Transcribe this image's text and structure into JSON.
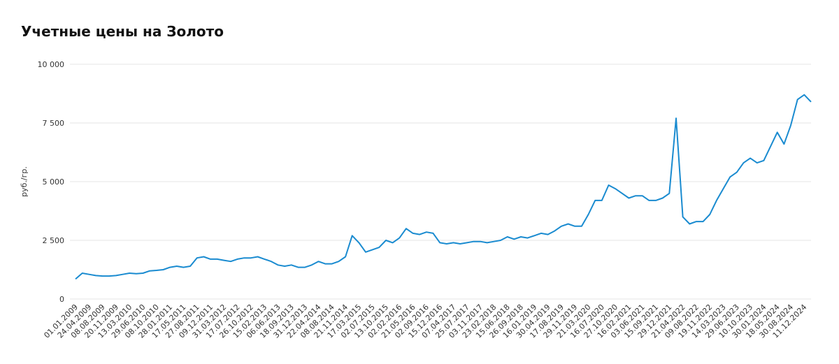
{
  "chart_data": {
    "type": "line",
    "title": "Учетные цены на Золото",
    "y_label": "руб./гр.",
    "categories": [
      "01.01.2009",
      null,
      "24.04.2009",
      null,
      "08.08.2009",
      null,
      "20.11.2009",
      null,
      "13.03.2010",
      null,
      "29.06.2010",
      null,
      "08.10.2010",
      null,
      "28.01.2011",
      null,
      "17.05.2011",
      null,
      "27.08.2011",
      null,
      "09.12.2011",
      null,
      "31.03.2012",
      null,
      "17.07.2012",
      null,
      "26.10.2012",
      null,
      "15.02.2013",
      null,
      "06.06.2013",
      null,
      "18.09.2013",
      null,
      "31.12.2013",
      null,
      "22.04.2014",
      null,
      "08.08.2014",
      null,
      "21.11.2014",
      null,
      "17.03.2015",
      null,
      "02.07.2015",
      null,
      "13.10.2015",
      null,
      "02.02.2016",
      null,
      "21.05.2016",
      null,
      "02.09.2016",
      null,
      "15.12.2016",
      null,
      "07.04.2017",
      null,
      "25.07.2017",
      null,
      "03.11.2017",
      null,
      "23.02.2018",
      null,
      "15.06.2018",
      null,
      "26.09.2018",
      null,
      "16.01.2019",
      null,
      "30.04.2019",
      null,
      "17.08.2019",
      null,
      "29.11.2019",
      null,
      "21.03.2020",
      null,
      "16.07.2020",
      null,
      "27.10.2020",
      null,
      "16.02.2021",
      null,
      "03.06.2021",
      null,
      "15.09.2021",
      null,
      "29.12.2021",
      null,
      "21.04.2022",
      null,
      "09.08.2022",
      null,
      "19.11.2022",
      null,
      "14.03.2023",
      null,
      "29.06.2023",
      null,
      "10.10.2023",
      null,
      "30.01.2024",
      null,
      "18.05.2024",
      null,
      "30.08.2024",
      null,
      "11.12.2024",
      null
    ],
    "series": [
      {
        "name": "Золото",
        "color": "#1a8bd0",
        "values": [
          850,
          1100,
          1050,
          1000,
          980,
          980,
          1000,
          1050,
          1100,
          1080,
          1100,
          1200,
          1220,
          1250,
          1350,
          1400,
          1350,
          1400,
          1750,
          1800,
          1700,
          1700,
          1650,
          1600,
          1700,
          1750,
          1750,
          1800,
          1700,
          1600,
          1450,
          1400,
          1450,
          1350,
          1350,
          1450,
          1600,
          1500,
          1500,
          1600,
          1800,
          2700,
          2400,
          2000,
          2100,
          2200,
          2500,
          2400,
          2600,
          3000,
          2800,
          2750,
          2850,
          2800,
          2400,
          2350,
          2400,
          2350,
          2400,
          2450,
          2450,
          2400,
          2450,
          2500,
          2650,
          2550,
          2650,
          2600,
          2700,
          2800,
          2750,
          2900,
          3100,
          3200,
          3100,
          3100,
          3600,
          4200,
          4200,
          4850,
          4700,
          4500,
          4300,
          4400,
          4400,
          4200,
          4200,
          4300,
          4500,
          7700,
          3500,
          3200,
          3300,
          3300,
          3600,
          4200,
          4700,
          5200,
          5400,
          5800,
          6000,
          5800,
          5900,
          6500,
          7100,
          6600,
          7400,
          8500,
          8700,
          8400
        ]
      }
    ],
    "ylim": [
      0,
      10000
    ],
    "yticks": [
      0,
      {
        "value": 2500,
        "label": "2 500"
      },
      {
        "value": 5000,
        "label": "5 000"
      },
      {
        "value": 7500,
        "label": "7 500"
      },
      {
        "value": 10000,
        "label": "10 000"
      }
    ],
    "grid": true
  }
}
